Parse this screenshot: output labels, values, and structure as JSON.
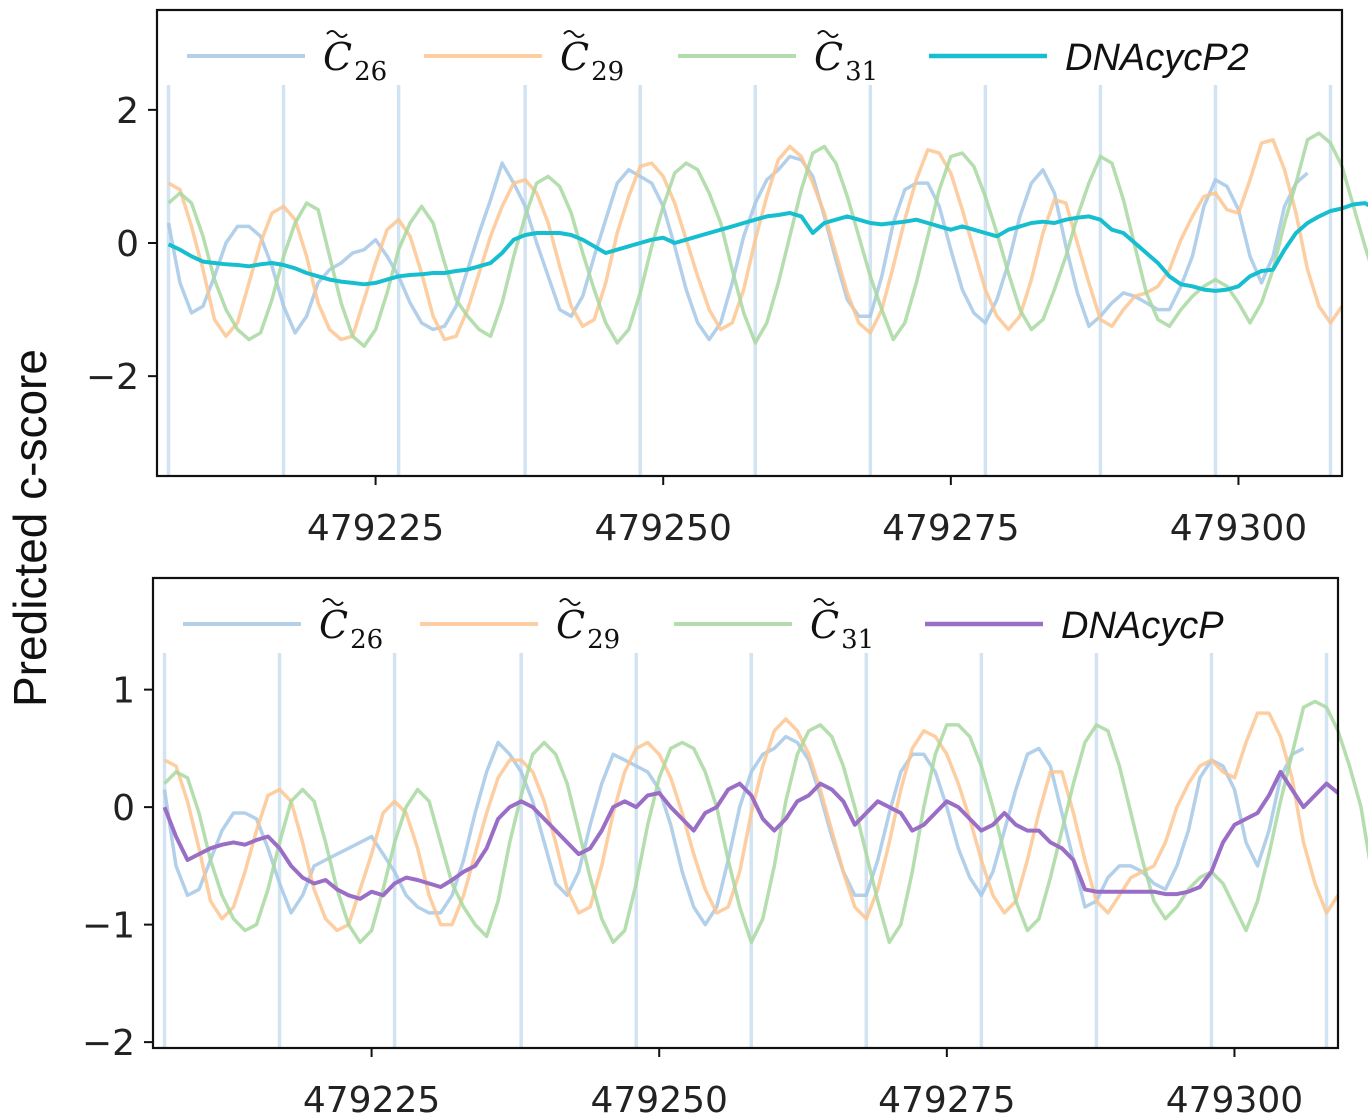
{
  "figure": {
    "ylabel": "Predicted c-score"
  },
  "chart_data": [
    {
      "type": "line",
      "title": "",
      "xlabel": "",
      "ylabel": "Predicted c-score",
      "xlim": [
        479206,
        479309
      ],
      "ylim": [
        -3.5,
        3.5
      ],
      "xticks": [
        479225,
        479250,
        479275,
        479300
      ],
      "yticks": [
        -2,
        0,
        2
      ],
      "ytick_labels": [
        "−2",
        "0",
        "2"
      ],
      "vlines": [
        479207,
        479217,
        479227,
        479238,
        479248,
        479258,
        479268,
        479278,
        479288,
        479298,
        479308
      ],
      "legend": {
        "placement": "top",
        "entries": [
          {
            "symbol": "C",
            "sub": "26"
          },
          {
            "symbol": "C",
            "sub": "29"
          },
          {
            "symbol": "C",
            "sub": "31"
          },
          {
            "label": "DNAcycP2"
          }
        ]
      },
      "x_start": 479207,
      "series": [
        {
          "name": "C26",
          "color": "#a6c8e6",
          "values": [
            0.3,
            -0.6,
            -1.05,
            -0.95,
            -0.5,
            0.0,
            0.25,
            0.25,
            0.1,
            -0.35,
            -0.95,
            -1.35,
            -1.1,
            -0.6,
            -0.4,
            -0.3,
            -0.15,
            -0.1,
            0.05,
            -0.2,
            -0.5,
            -0.9,
            -1.2,
            -1.3,
            -1.25,
            -0.95,
            -0.4,
            0.15,
            0.65,
            1.2,
            0.9,
            0.55,
            0.0,
            -0.5,
            -1.0,
            -1.1,
            -0.8,
            -0.2,
            0.35,
            0.9,
            1.1,
            1.0,
            0.9,
            0.55,
            -0.05,
            -0.7,
            -1.2,
            -1.45,
            -1.2,
            -0.6,
            0.1,
            0.6,
            0.95,
            1.1,
            1.3,
            1.25,
            1.0,
            0.4,
            -0.25,
            -0.85,
            -1.1,
            -1.1,
            -0.5,
            0.3,
            0.8,
            0.9,
            0.9,
            0.55,
            -0.1,
            -0.7,
            -1.05,
            -1.2,
            -0.85,
            -0.3,
            0.4,
            0.9,
            1.1,
            0.75,
            -0.05,
            -0.75,
            -1.25,
            -1.1,
            -0.9,
            -0.75,
            -0.8,
            -0.9,
            -1.0,
            -1.0,
            -0.65,
            -0.2,
            0.55,
            0.95,
            0.85,
            0.5,
            -0.2,
            -0.6,
            -0.2,
            0.55,
            0.9,
            1.05
          ]
        },
        {
          "name": "C29",
          "color": "#fdc691",
          "values": [
            0.9,
            0.8,
            0.25,
            -0.4,
            -1.15,
            -1.4,
            -1.2,
            -0.6,
            0.0,
            0.45,
            0.55,
            0.35,
            -0.2,
            -0.9,
            -1.3,
            -1.45,
            -1.4,
            -0.85,
            -0.3,
            0.2,
            0.35,
            0.1,
            -0.45,
            -1.1,
            -1.45,
            -1.4,
            -1.0,
            -0.45,
            0.1,
            0.55,
            0.9,
            0.95,
            0.75,
            0.3,
            -0.35,
            -0.95,
            -1.25,
            -1.15,
            -0.6,
            0.15,
            0.7,
            1.15,
            1.2,
            1.0,
            0.6,
            0.05,
            -0.5,
            -1.0,
            -1.3,
            -1.2,
            -0.7,
            0.05,
            0.7,
            1.25,
            1.45,
            1.3,
            0.9,
            0.45,
            -0.15,
            -0.75,
            -1.2,
            -1.35,
            -1.0,
            -0.35,
            0.35,
            0.95,
            1.4,
            1.35,
            1.05,
            0.5,
            -0.1,
            -0.7,
            -1.1,
            -1.3,
            -1.1,
            -0.55,
            0.15,
            0.65,
            0.6,
            0.0,
            -0.6,
            -1.15,
            -1.25,
            -1.0,
            -0.8,
            -0.75,
            -0.65,
            -0.4,
            0.05,
            0.4,
            0.7,
            0.75,
            0.5,
            0.45,
            0.95,
            1.5,
            1.55,
            1.1,
            0.45,
            -0.4,
            -0.95,
            -1.2,
            -0.95
          ]
        },
        {
          "name": "C31",
          "color": "#a8d8a0",
          "values": [
            0.6,
            0.75,
            0.6,
            0.1,
            -0.55,
            -1.0,
            -1.3,
            -1.45,
            -1.35,
            -0.85,
            -0.2,
            0.3,
            0.6,
            0.5,
            -0.2,
            -0.9,
            -1.4,
            -1.55,
            -1.3,
            -0.75,
            -0.1,
            0.3,
            0.55,
            0.3,
            -0.3,
            -0.85,
            -1.1,
            -1.3,
            -1.4,
            -0.9,
            -0.2,
            0.4,
            0.9,
            1.0,
            0.85,
            0.45,
            -0.15,
            -0.7,
            -1.2,
            -1.5,
            -1.3,
            -0.75,
            -0.05,
            0.55,
            1.05,
            1.2,
            1.1,
            0.75,
            0.3,
            -0.4,
            -1.05,
            -1.5,
            -1.2,
            -0.6,
            0.1,
            0.8,
            1.35,
            1.45,
            1.2,
            0.7,
            0.1,
            -0.5,
            -1.0,
            -1.45,
            -1.2,
            -0.6,
            0.1,
            0.8,
            1.3,
            1.35,
            1.15,
            0.7,
            0.15,
            -0.45,
            -1.0,
            -1.3,
            -1.15,
            -0.7,
            -0.2,
            0.4,
            0.9,
            1.3,
            1.2,
            0.65,
            -0.05,
            -0.75,
            -1.15,
            -1.25,
            -1.0,
            -0.8,
            -0.65,
            -0.55,
            -0.65,
            -0.9,
            -1.2,
            -0.9,
            -0.4,
            0.3,
            0.9,
            1.55,
            1.65,
            1.5,
            1.15,
            0.55,
            -0.05,
            -0.6
          ]
        },
        {
          "name": "DNAcycP2",
          "color": "#17becf",
          "values": [
            -0.02,
            -0.1,
            -0.2,
            -0.28,
            -0.3,
            -0.32,
            -0.33,
            -0.35,
            -0.32,
            -0.3,
            -0.33,
            -0.38,
            -0.45,
            -0.5,
            -0.55,
            -0.58,
            -0.6,
            -0.62,
            -0.6,
            -0.55,
            -0.5,
            -0.48,
            -0.47,
            -0.45,
            -0.45,
            -0.42,
            -0.4,
            -0.35,
            -0.3,
            -0.15,
            0.05,
            0.12,
            0.15,
            0.15,
            0.15,
            0.12,
            0.05,
            -0.05,
            -0.15,
            -0.1,
            -0.05,
            0.0,
            0.05,
            0.08,
            0.0,
            0.05,
            0.1,
            0.15,
            0.2,
            0.25,
            0.3,
            0.35,
            0.4,
            0.42,
            0.45,
            0.4,
            0.15,
            0.3,
            0.35,
            0.4,
            0.35,
            0.3,
            0.28,
            0.3,
            0.32,
            0.35,
            0.3,
            0.25,
            0.2,
            0.25,
            0.2,
            0.15,
            0.1,
            0.2,
            0.25,
            0.3,
            0.32,
            0.3,
            0.35,
            0.38,
            0.4,
            0.35,
            0.2,
            0.15,
            0.0,
            -0.15,
            -0.3,
            -0.5,
            -0.62,
            -0.65,
            -0.7,
            -0.72,
            -0.7,
            -0.65,
            -0.5,
            -0.42,
            -0.4,
            -0.1,
            0.15,
            0.3,
            0.4,
            0.48,
            0.52,
            0.58,
            0.6,
            0.5,
            0.42,
            0.35
          ]
        }
      ]
    },
    {
      "type": "line",
      "title": "",
      "xlabel": "",
      "ylabel": "Predicted c-score",
      "xlim": [
        479206,
        479309
      ],
      "ylim": [
        -2.05,
        1.95
      ],
      "xticks": [
        479225,
        479250,
        479275,
        479300
      ],
      "yticks": [
        -2,
        -1,
        0,
        1
      ],
      "ytick_labels": [
        "−2",
        "−1",
        "0",
        "1"
      ],
      "vlines": [
        479207,
        479217,
        479227,
        479238,
        479248,
        479258,
        479268,
        479278,
        479288,
        479298,
        479308
      ],
      "legend": {
        "placement": "top",
        "entries": [
          {
            "symbol": "C",
            "sub": "26"
          },
          {
            "symbol": "C",
            "sub": "29"
          },
          {
            "symbol": "C",
            "sub": "31"
          },
          {
            "label": "DNAcycP"
          }
        ]
      },
      "x_start": 479207,
      "series": [
        {
          "name": "C26",
          "color": "#a6c8e6",
          "values": [
            0.15,
            -0.5,
            -0.75,
            -0.7,
            -0.45,
            -0.2,
            -0.05,
            -0.05,
            -0.1,
            -0.35,
            -0.65,
            -0.9,
            -0.75,
            -0.5,
            -0.45,
            -0.4,
            -0.35,
            -0.3,
            -0.25,
            -0.4,
            -0.55,
            -0.75,
            -0.85,
            -0.9,
            -0.9,
            -0.75,
            -0.45,
            -0.05,
            0.3,
            0.55,
            0.45,
            0.3,
            0.05,
            -0.3,
            -0.65,
            -0.75,
            -0.55,
            -0.15,
            0.2,
            0.45,
            0.4,
            0.35,
            0.3,
            0.15,
            -0.15,
            -0.55,
            -0.85,
            -1.0,
            -0.85,
            -0.45,
            0.0,
            0.3,
            0.45,
            0.5,
            0.6,
            0.55,
            0.4,
            0.1,
            -0.25,
            -0.55,
            -0.75,
            -0.75,
            -0.45,
            -0.05,
            0.3,
            0.45,
            0.45,
            0.3,
            0.0,
            -0.35,
            -0.6,
            -0.75,
            -0.55,
            -0.2,
            0.15,
            0.45,
            0.5,
            0.35,
            -0.05,
            -0.45,
            -0.85,
            -0.8,
            -0.6,
            -0.5,
            -0.5,
            -0.55,
            -0.65,
            -0.7,
            -0.5,
            -0.2,
            0.25,
            0.4,
            0.35,
            0.15,
            -0.3,
            -0.5,
            -0.2,
            0.25,
            0.45,
            0.5
          ]
        },
        {
          "name": "C29",
          "color": "#fdc691",
          "values": [
            0.4,
            0.35,
            0.05,
            -0.35,
            -0.8,
            -0.95,
            -0.85,
            -0.55,
            -0.2,
            0.1,
            0.15,
            0.05,
            -0.3,
            -0.7,
            -0.95,
            -1.05,
            -1.0,
            -0.7,
            -0.4,
            -0.05,
            0.05,
            -0.05,
            -0.35,
            -0.75,
            -1.0,
            -1.0,
            -0.75,
            -0.4,
            -0.05,
            0.25,
            0.4,
            0.4,
            0.3,
            0.05,
            -0.3,
            -0.7,
            -0.9,
            -0.85,
            -0.5,
            -0.05,
            0.3,
            0.5,
            0.55,
            0.45,
            0.25,
            -0.05,
            -0.4,
            -0.7,
            -0.9,
            -0.85,
            -0.55,
            -0.05,
            0.35,
            0.65,
            0.75,
            0.65,
            0.45,
            0.15,
            -0.2,
            -0.55,
            -0.85,
            -0.95,
            -0.7,
            -0.3,
            0.15,
            0.5,
            0.65,
            0.6,
            0.45,
            0.2,
            -0.1,
            -0.45,
            -0.75,
            -0.9,
            -0.8,
            -0.45,
            -0.05,
            0.3,
            0.3,
            -0.05,
            -0.45,
            -0.8,
            -0.9,
            -0.75,
            -0.6,
            -0.55,
            -0.5,
            -0.3,
            0.0,
            0.2,
            0.35,
            0.4,
            0.3,
            0.25,
            0.55,
            0.8,
            0.8,
            0.6,
            0.25,
            -0.3,
            -0.65,
            -0.9,
            -0.75
          ]
        },
        {
          "name": "C31",
          "color": "#a8d8a0",
          "values": [
            0.2,
            0.3,
            0.25,
            -0.05,
            -0.45,
            -0.75,
            -0.95,
            -1.05,
            -1.0,
            -0.7,
            -0.3,
            0.05,
            0.15,
            0.05,
            -0.3,
            -0.7,
            -1.0,
            -1.15,
            -1.05,
            -0.7,
            -0.3,
            0.0,
            0.15,
            0.05,
            -0.3,
            -0.65,
            -0.85,
            -1.0,
            -1.1,
            -0.8,
            -0.3,
            0.1,
            0.45,
            0.55,
            0.45,
            0.2,
            -0.2,
            -0.6,
            -0.95,
            -1.15,
            -1.05,
            -0.65,
            -0.15,
            0.25,
            0.5,
            0.55,
            0.5,
            0.3,
            0.0,
            -0.45,
            -0.85,
            -1.15,
            -0.95,
            -0.5,
            0.05,
            0.45,
            0.65,
            0.7,
            0.6,
            0.35,
            0.0,
            -0.4,
            -0.8,
            -1.15,
            -1.0,
            -0.55,
            0.0,
            0.45,
            0.7,
            0.7,
            0.6,
            0.35,
            0.0,
            -0.4,
            -0.8,
            -1.05,
            -0.95,
            -0.6,
            -0.2,
            0.2,
            0.55,
            0.7,
            0.65,
            0.35,
            -0.05,
            -0.45,
            -0.8,
            -0.95,
            -0.85,
            -0.7,
            -0.6,
            -0.55,
            -0.65,
            -0.85,
            -1.05,
            -0.8,
            -0.4,
            0.05,
            0.45,
            0.85,
            0.9,
            0.85,
            0.65,
            0.35,
            0.0,
            -0.6
          ]
        },
        {
          "name": "DNAcycP",
          "color": "#9b6ec6",
          "values": [
            0.0,
            -0.25,
            -0.45,
            -0.4,
            -0.35,
            -0.32,
            -0.3,
            -0.32,
            -0.28,
            -0.25,
            -0.35,
            -0.5,
            -0.6,
            -0.65,
            -0.62,
            -0.7,
            -0.75,
            -0.78,
            -0.72,
            -0.75,
            -0.65,
            -0.6,
            -0.62,
            -0.65,
            -0.68,
            -0.62,
            -0.55,
            -0.5,
            -0.35,
            -0.1,
            0.0,
            0.05,
            0.0,
            -0.1,
            -0.2,
            -0.3,
            -0.4,
            -0.35,
            -0.2,
            0.0,
            0.05,
            0.0,
            0.1,
            0.12,
            0.0,
            -0.1,
            -0.2,
            -0.05,
            0.0,
            0.15,
            0.2,
            0.1,
            -0.1,
            -0.2,
            -0.1,
            0.05,
            0.1,
            0.2,
            0.15,
            0.05,
            -0.15,
            -0.05,
            0.05,
            0.0,
            -0.05,
            -0.2,
            -0.15,
            -0.05,
            0.05,
            0.0,
            -0.1,
            -0.2,
            -0.15,
            -0.05,
            -0.15,
            -0.2,
            -0.2,
            -0.3,
            -0.35,
            -0.45,
            -0.7,
            -0.72,
            -0.72,
            -0.72,
            -0.72,
            -0.72,
            -0.72,
            -0.74,
            -0.74,
            -0.72,
            -0.68,
            -0.55,
            -0.3,
            -0.15,
            -0.1,
            -0.05,
            0.1,
            0.3,
            0.15,
            0.0,
            0.1,
            0.2,
            0.12
          ]
        }
      ]
    }
  ]
}
